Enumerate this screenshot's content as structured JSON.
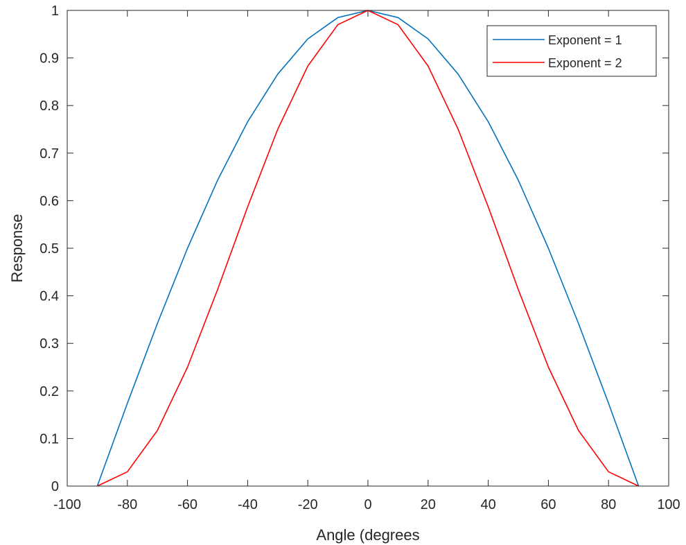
{
  "chart_data": {
    "type": "line",
    "title": "",
    "xlabel": "Angle (degrees",
    "ylabel": "Response",
    "xlim": [
      -100,
      100
    ],
    "ylim": [
      0,
      1
    ],
    "xticks": [
      -100,
      -80,
      -60,
      -40,
      -20,
      0,
      20,
      40,
      60,
      80,
      100
    ],
    "yticks": [
      0,
      0.1,
      0.2,
      0.3,
      0.4,
      0.5,
      0.6,
      0.7,
      0.8,
      0.9,
      1
    ],
    "xtick_labels": [
      "-100",
      "-80",
      "-60",
      "-40",
      "-20",
      "0",
      "20",
      "40",
      "60",
      "80",
      "100"
    ],
    "ytick_labels": [
      "0",
      "0.1",
      "0.2",
      "0.3",
      "0.4",
      "0.5",
      "0.6",
      "0.7",
      "0.8",
      "0.9",
      "1"
    ],
    "grid": false,
    "legend_position": "top-right",
    "x": [
      -90,
      -80,
      -70,
      -60,
      -50,
      -40,
      -30,
      -20,
      -10,
      0,
      10,
      20,
      30,
      40,
      50,
      60,
      70,
      80,
      90
    ],
    "series": [
      {
        "name": "Exponent = 1",
        "color": "#0072BD",
        "values": [
          0,
          0.174,
          0.342,
          0.5,
          0.643,
          0.766,
          0.866,
          0.94,
          0.985,
          1,
          0.985,
          0.94,
          0.866,
          0.766,
          0.643,
          0.5,
          0.342,
          0.174,
          0
        ]
      },
      {
        "name": "Exponent = 2",
        "color": "#FF0000",
        "values": [
          0,
          0.03,
          0.117,
          0.25,
          0.413,
          0.587,
          0.75,
          0.883,
          0.97,
          1,
          0.97,
          0.883,
          0.75,
          0.587,
          0.413,
          0.25,
          0.117,
          0.03,
          0
        ]
      }
    ]
  }
}
